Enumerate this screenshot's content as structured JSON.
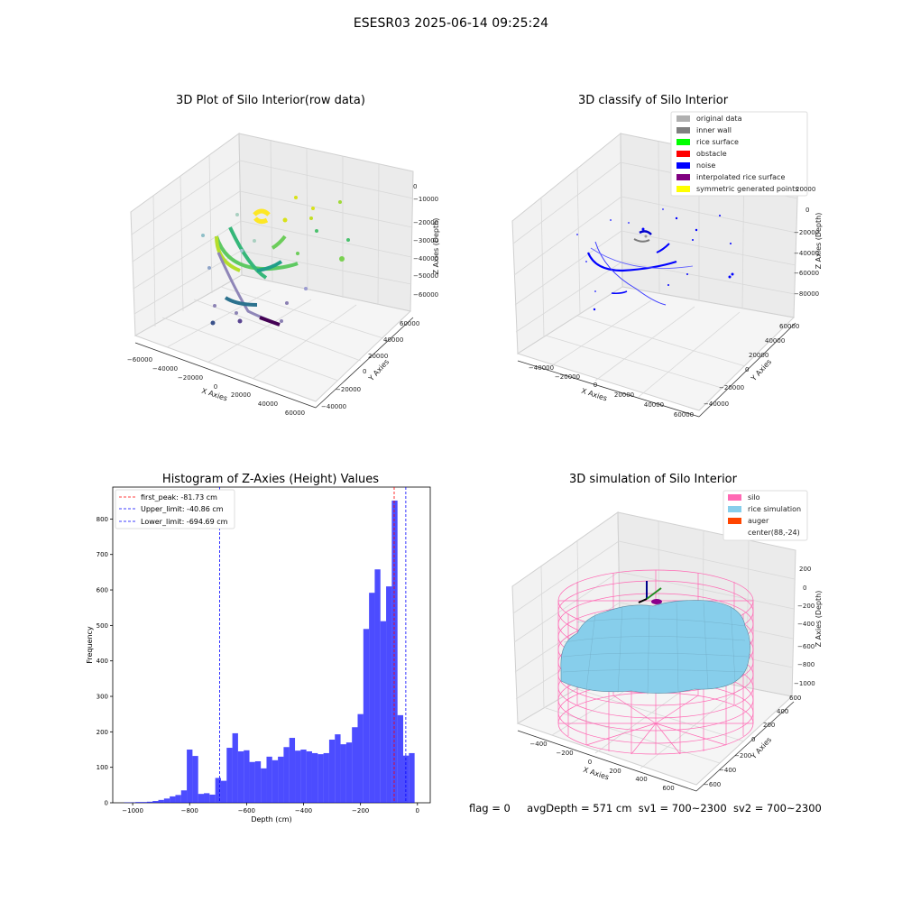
{
  "page_title": "ESESR03 2025-06-14 09:25:24",
  "status_line": {
    "flag": "flag = 0",
    "avg_depth": "avgDepth = 571 cm",
    "sv1": "sv1 = 700~2300",
    "sv2": "sv2 = 700~2300"
  },
  "chart_data": [
    {
      "type": "scatter",
      "projection": "3d",
      "title": "3D Plot of Silo Interior(row data)",
      "xlabel": "X Axies",
      "ylabel": "Y Axies",
      "zlabel": "Z Axies (Depth)",
      "x_ticks": [
        "−60000",
        "−40000",
        "−20000",
        "0",
        "20000",
        "40000",
        "60000"
      ],
      "y_ticks": [
        "−40000",
        "−20000",
        "0",
        "20000",
        "40000",
        "60000"
      ],
      "z_ticks": [
        "0",
        "−10000",
        "−20000",
        "−30000",
        "−40000",
        "−50000",
        "−60000"
      ],
      "colormap": "viridis"
    },
    {
      "type": "scatter",
      "projection": "3d",
      "title": "3D classify of Silo Interior",
      "xlabel": "X Axies",
      "ylabel": "Y Axies",
      "zlabel": "Z Axies (Depth)",
      "x_ticks": [
        "−40000",
        "−20000",
        "0",
        "20000",
        "40000",
        "60000"
      ],
      "y_ticks": [
        "−40000",
        "−20000",
        "0",
        "20000",
        "40000",
        "60000"
      ],
      "z_ticks": [
        "20000",
        "0",
        "−20000",
        "−40000",
        "−60000",
        "−80000"
      ],
      "legend_position": "top-right",
      "legend": [
        {
          "label": "original data",
          "color": "#b0b0b0"
        },
        {
          "label": "inner wall",
          "color": "#808080"
        },
        {
          "label": "rice surface",
          "color": "#00ff00"
        },
        {
          "label": "obstacle",
          "color": "#ff0000"
        },
        {
          "label": "noise",
          "color": "#0000ff"
        },
        {
          "label": "interpolated rice surface",
          "color": "#800080"
        },
        {
          "label": "symmetric generated points",
          "color": "#ffff00"
        }
      ]
    },
    {
      "type": "bar",
      "title": "Histogram of Z-Axies (Height) Values",
      "xlabel": "Depth (cm)",
      "ylabel": "Frequency",
      "xlim": [
        -1070,
        45
      ],
      "ylim": [
        0,
        890
      ],
      "x_ticks": [
        -1000,
        -800,
        -600,
        -400,
        -200,
        0
      ],
      "y_ticks": [
        0,
        100,
        200,
        300,
        400,
        500,
        600,
        700,
        800
      ],
      "bar_color": "#0000ff",
      "bin_start": -1030,
      "bin_width": 20,
      "values": [
        1,
        1,
        2,
        2,
        3,
        5,
        8,
        12,
        18,
        22,
        35,
        150,
        132,
        25,
        27,
        23,
        70,
        62,
        155,
        196,
        145,
        148,
        115,
        117,
        97,
        130,
        120,
        130,
        157,
        183,
        147,
        150,
        145,
        140,
        137,
        140,
        178,
        193,
        165,
        170,
        213,
        250,
        490,
        592,
        658,
        512,
        610,
        852,
        247,
        133,
        140
      ],
      "vlines": [
        {
          "label": "first_peak: -81.73 cm",
          "x": -81.73,
          "color": "#ff0000"
        },
        {
          "label": "Upper_limit: -40.86 cm",
          "x": -40.86,
          "color": "#0000ff"
        },
        {
          "label": "Lower_limit: -694.69 cm",
          "x": -694.69,
          "color": "#0000ff"
        }
      ],
      "legend_position": "top-left"
    },
    {
      "type": "surface",
      "projection": "3d",
      "title": "3D simulation of Silo Interior",
      "xlabel": "X Axies",
      "ylabel": "Y Axies",
      "zlabel": "Z Axies (Depth)",
      "x_ticks": [
        "−400",
        "−200",
        "0",
        "200",
        "400",
        "600"
      ],
      "y_ticks": [
        "−600",
        "−400",
        "−200",
        "0",
        "200",
        "400",
        "600"
      ],
      "z_ticks": [
        "200",
        "0",
        "−200",
        "−400",
        "−600",
        "−800",
        "−1000"
      ],
      "legend_position": "top-right",
      "legend": [
        {
          "label": "silo",
          "color": "#ff69b4"
        },
        {
          "label": "rice simulation",
          "color": "#87ceeb"
        },
        {
          "label": "auger",
          "color": "#ff4500"
        },
        {
          "label": "center(88,-24)",
          "color": ""
        }
      ]
    }
  ]
}
